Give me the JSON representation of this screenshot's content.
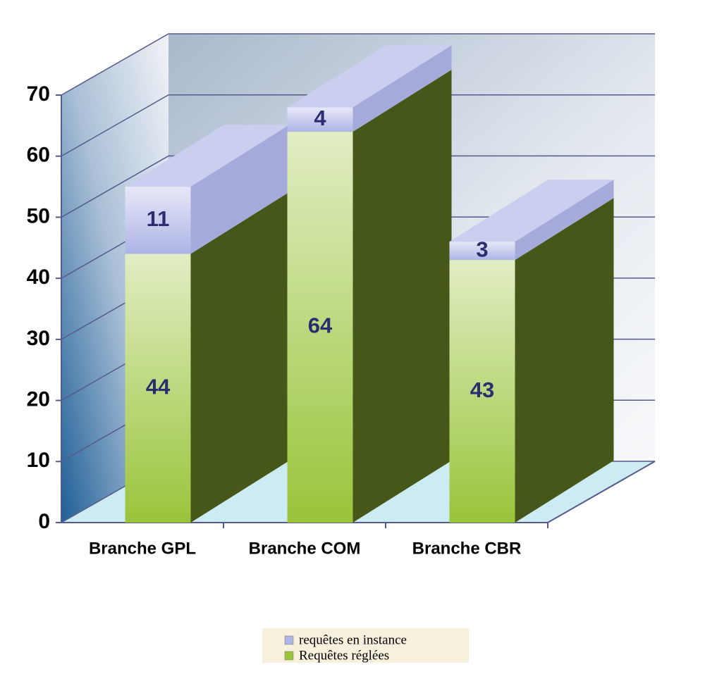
{
  "chart_data": {
    "type": "bar3d-stacked",
    "categories": [
      "Branche GPL",
      "Branche COM",
      "Branche CBR"
    ],
    "series": [
      {
        "name": "Requêtes réglées",
        "color": "#9ac43a",
        "values": [
          44,
          64,
          43
        ]
      },
      {
        "name": "requêtes en instance",
        "color": "#aeb4e6",
        "values": [
          11,
          4,
          3
        ]
      }
    ],
    "ylim": [
      0,
      70
    ],
    "yticks": [
      0,
      10,
      20,
      30,
      40,
      50,
      60,
      70
    ],
    "grid": true
  }
}
